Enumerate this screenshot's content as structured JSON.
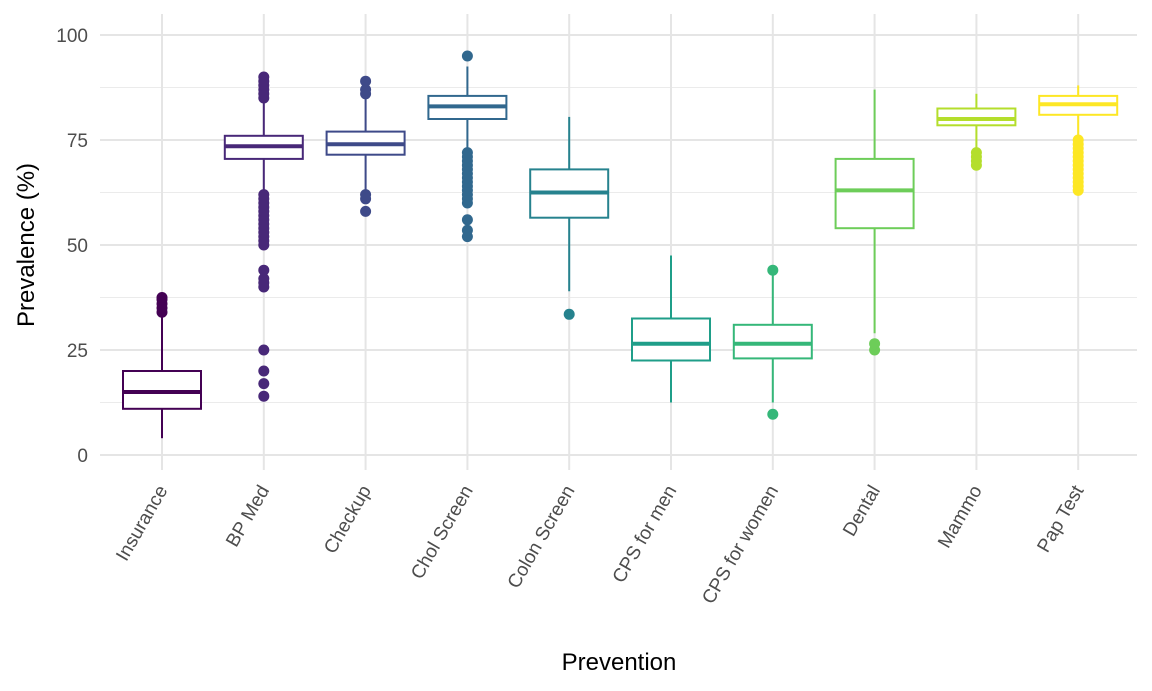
{
  "chart_data": {
    "type": "boxplot",
    "title": "",
    "xlabel": "Prevention",
    "ylabel": "Prevalence (%)",
    "ylim": [
      0,
      100
    ],
    "yticks": [
      0,
      25,
      50,
      75,
      100
    ],
    "grid": true,
    "legend": "none",
    "categories": [
      "Insurance",
      "BP Med",
      "Checkup",
      "Chol Screen",
      "Colon Screen",
      "CPS for men",
      "CPS for women",
      "Dental",
      "Mammo",
      "Pap Test"
    ],
    "colors": [
      "#440154",
      "#482878",
      "#3E4A89",
      "#31688E",
      "#26828E",
      "#1F9E89",
      "#35B779",
      "#6DCD59",
      "#B4DE2C",
      "#FDE725"
    ],
    "boxes": [
      {
        "category": "Insurance",
        "whisker_low": 4,
        "q1": 11,
        "median": 15,
        "q3": 20,
        "whisker_high": 33,
        "outliers": [
          34,
          35,
          36,
          37,
          37.5
        ]
      },
      {
        "category": "BP Med",
        "whisker_low": 63,
        "q1": 70.5,
        "median": 73.5,
        "q3": 76,
        "whisker_high": 84,
        "outliers": [
          14,
          17,
          20,
          25,
          40,
          41,
          42,
          44,
          50,
          51,
          52,
          53,
          54,
          55,
          56,
          57,
          58,
          59,
          60,
          61,
          62,
          85,
          86,
          87,
          88,
          89,
          90
        ]
      },
      {
        "category": "Checkup",
        "whisker_low": 63,
        "q1": 71.5,
        "median": 74,
        "q3": 77,
        "whisker_high": 85,
        "outliers": [
          58,
          61,
          62,
          86,
          87,
          89
        ]
      },
      {
        "category": "Chol Screen",
        "whisker_low": 73,
        "q1": 80,
        "median": 83,
        "q3": 85.5,
        "whisker_high": 92.5,
        "outliers": [
          52,
          53.5,
          56,
          60,
          61,
          62,
          63,
          64,
          65,
          66,
          67,
          68,
          69,
          70,
          71,
          72,
          95
        ]
      },
      {
        "category": "Colon Screen",
        "whisker_low": 39,
        "q1": 56.5,
        "median": 62.5,
        "q3": 68,
        "whisker_high": 80.5,
        "outliers": [
          33.5
        ]
      },
      {
        "category": "CPS for men",
        "whisker_low": 12.5,
        "q1": 22.5,
        "median": 26.5,
        "q3": 32.5,
        "whisker_high": 47.5,
        "outliers": []
      },
      {
        "category": "CPS for women",
        "whisker_low": 12.5,
        "q1": 23,
        "median": 26.5,
        "q3": 31,
        "whisker_high": 43,
        "outliers": [
          9.7,
          44
        ]
      },
      {
        "category": "Dental",
        "whisker_low": 29,
        "q1": 54,
        "median": 63,
        "q3": 70.5,
        "whisker_high": 87,
        "outliers": [
          25,
          26.5
        ]
      },
      {
        "category": "Mammo",
        "whisker_low": 73,
        "q1": 78.5,
        "median": 80,
        "q3": 82.5,
        "whisker_high": 86,
        "outliers": [
          69,
          70,
          71,
          72
        ]
      },
      {
        "category": "Pap Test",
        "whisker_low": 75.5,
        "q1": 81,
        "median": 83.5,
        "q3": 85.5,
        "whisker_high": 88,
        "outliers": [
          63,
          64,
          65,
          66,
          67,
          68,
          69,
          70,
          71,
          72,
          73,
          74,
          75
        ]
      }
    ]
  }
}
